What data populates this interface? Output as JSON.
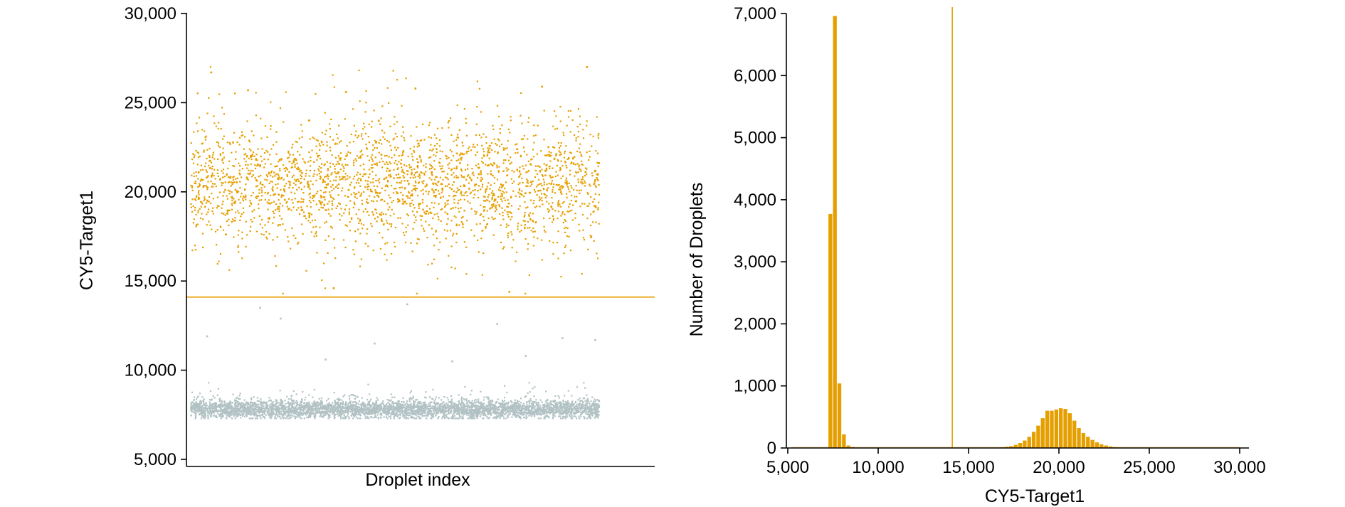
{
  "colors": {
    "positive": "#E69F00",
    "negative": "#B2C2C4",
    "threshold": "#E69F00",
    "axis": "#000000"
  },
  "chart_data": [
    {
      "type": "scatter",
      "xlabel": "Droplet index",
      "ylabel": "CY5-Target1",
      "ylim": [
        4500,
        30000
      ],
      "yticks": [
        5000,
        10000,
        15000,
        20000,
        25000,
        30000
      ],
      "ytick_labels": [
        "5,000",
        "10,000",
        "15,000",
        "20,000",
        "25,000",
        "30,000"
      ],
      "threshold": 14100,
      "grid": false,
      "series": [
        {
          "class": "positive",
          "approx_count": 2600,
          "mean": 20500,
          "sd": 1600,
          "range": [
            14300,
            27000
          ],
          "sample_points": [
            {
              "index": 0.05,
              "value": 26700
            },
            {
              "index": 0.14,
              "value": 25700
            },
            {
              "index": 0.38,
              "value": 25600
            },
            {
              "index": 0.55,
              "value": 25800
            },
            {
              "index": 0.86,
              "value": 25900
            },
            {
              "index": 0.97,
              "value": 27000
            },
            {
              "index": 0.35,
              "value": 14600
            },
            {
              "index": 0.78,
              "value": 14400
            }
          ]
        },
        {
          "class": "negative",
          "approx_count": 4500,
          "mean": 7800,
          "sd": 250,
          "range": [
            7300,
            9300
          ],
          "outliers": [
            {
              "index": 0.04,
              "value": 11900
            },
            {
              "index": 0.17,
              "value": 13500
            },
            {
              "index": 0.22,
              "value": 12900
            },
            {
              "index": 0.33,
              "value": 10600
            },
            {
              "index": 0.45,
              "value": 11500
            },
            {
              "index": 0.53,
              "value": 13700
            },
            {
              "index": 0.64,
              "value": 10500
            },
            {
              "index": 0.75,
              "value": 12600
            },
            {
              "index": 0.82,
              "value": 10800
            },
            {
              "index": 0.91,
              "value": 11800
            },
            {
              "index": 0.99,
              "value": 11700
            }
          ]
        }
      ]
    },
    {
      "type": "bar",
      "xlabel": "CY5-Target1",
      "ylabel": "Number of Droplets",
      "xlim": [
        4800,
        30200
      ],
      "ylim": [
        0,
        7100
      ],
      "xticks": [
        5000,
        10000,
        15000,
        20000,
        25000,
        30000
      ],
      "xtick_labels": [
        "5,000",
        "10,000",
        "15,000",
        "20,000",
        "25,000",
        "30,000"
      ],
      "yticks": [
        0,
        1000,
        2000,
        3000,
        4000,
        5000,
        6000,
        7000
      ],
      "ytick_labels": [
        "0",
        "1,000",
        "2,000",
        "3,000",
        "4,000",
        "5,000",
        "6,000",
        "7,000"
      ],
      "threshold": 14100,
      "bin_width": 250,
      "grid": false,
      "bins": [
        {
          "start": 7250,
          "count": 3770
        },
        {
          "start": 7500,
          "count": 6960
        },
        {
          "start": 7750,
          "count": 1040
        },
        {
          "start": 8000,
          "count": 220
        },
        {
          "start": 8250,
          "count": 40
        },
        {
          "start": 8500,
          "count": 15
        },
        {
          "start": 16750,
          "count": 10
        },
        {
          "start": 17000,
          "count": 20
        },
        {
          "start": 17250,
          "count": 30
        },
        {
          "start": 17500,
          "count": 50
        },
        {
          "start": 17750,
          "count": 80
        },
        {
          "start": 18000,
          "count": 120
        },
        {
          "start": 18250,
          "count": 180
        },
        {
          "start": 18500,
          "count": 260
        },
        {
          "start": 18750,
          "count": 360
        },
        {
          "start": 19000,
          "count": 480
        },
        {
          "start": 19250,
          "count": 600
        },
        {
          "start": 19500,
          "count": 600
        },
        {
          "start": 19750,
          "count": 620
        },
        {
          "start": 20000,
          "count": 640
        },
        {
          "start": 20250,
          "count": 630
        },
        {
          "start": 20500,
          "count": 560
        },
        {
          "start": 20750,
          "count": 440
        },
        {
          "start": 21000,
          "count": 320
        },
        {
          "start": 21250,
          "count": 240
        },
        {
          "start": 21500,
          "count": 180
        },
        {
          "start": 21750,
          "count": 130
        },
        {
          "start": 22000,
          "count": 90
        },
        {
          "start": 22250,
          "count": 60
        },
        {
          "start": 22500,
          "count": 40
        },
        {
          "start": 22750,
          "count": 25
        },
        {
          "start": 23000,
          "count": 15
        },
        {
          "start": 23250,
          "count": 8
        }
      ]
    }
  ]
}
